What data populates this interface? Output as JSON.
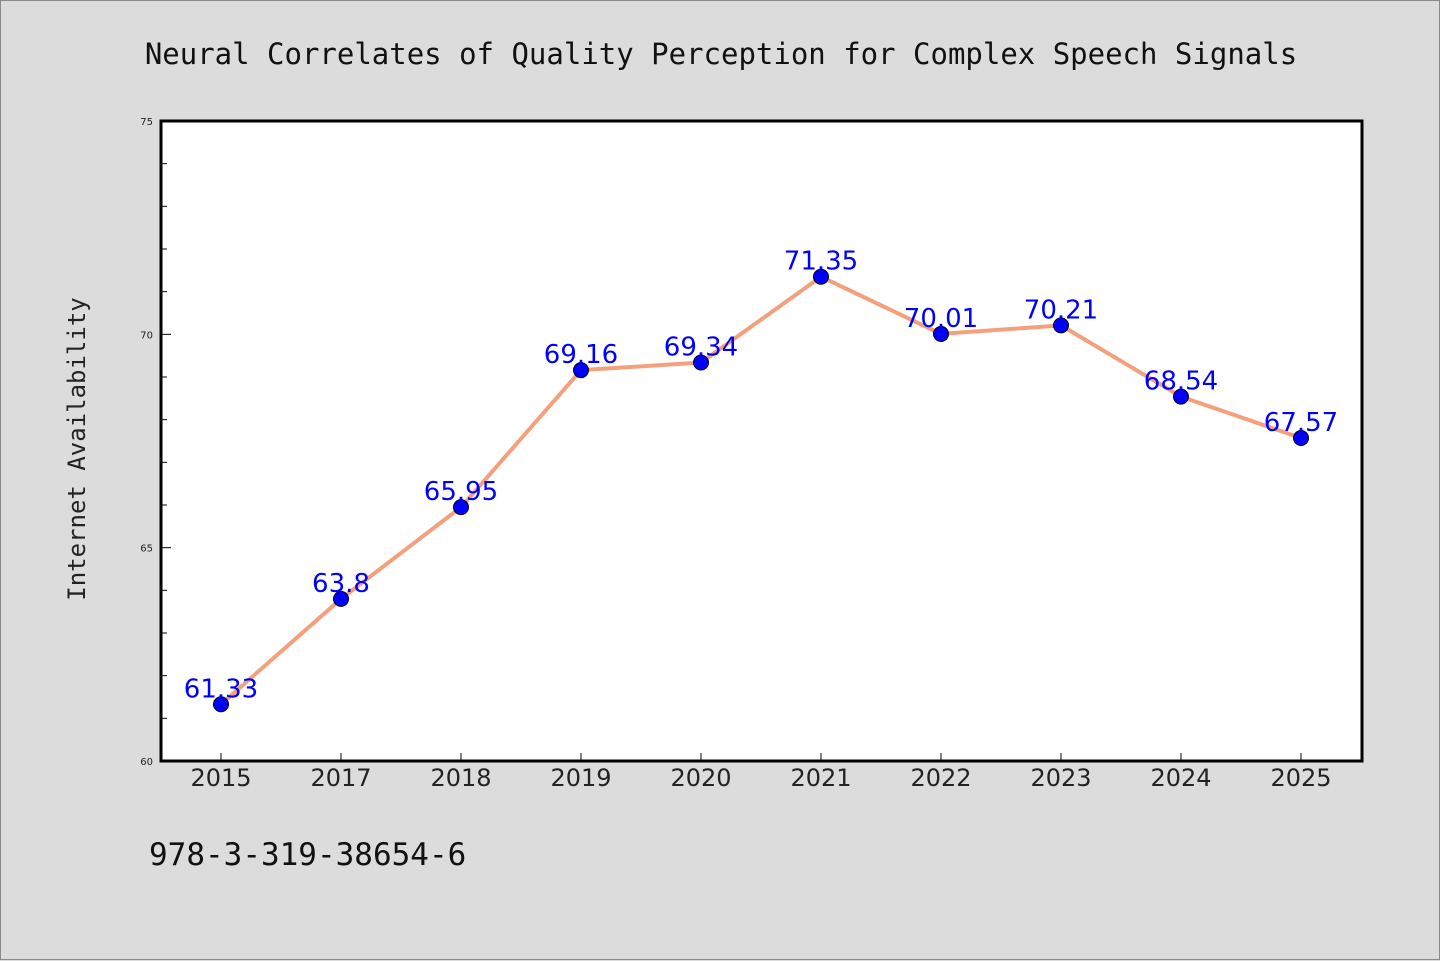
{
  "chart_data": {
    "type": "line",
    "title": "Neural Correlates of Quality Perception for Complex Speech Signals",
    "xlabel": "",
    "ylabel": "Internet Availability",
    "categories": [
      "2015",
      "2017",
      "2018",
      "2019",
      "2020",
      "2021",
      "2022",
      "2023",
      "2024",
      "2025"
    ],
    "series": [
      {
        "values": [
          61.33,
          63.8,
          65.95,
          69.16,
          69.34,
          71.35,
          70.01,
          70.21,
          68.54,
          67.57
        ]
      }
    ],
    "data_labels": [
      "61.33",
      "63.8",
      "65.95",
      "69.16",
      "69.34",
      "71.35",
      "70.01",
      "70.21",
      "68.54",
      "67.57"
    ],
    "ylim": [
      60,
      75
    ],
    "yticks": [
      60,
      65,
      70,
      75
    ],
    "ytick_labels": [
      "60",
      "65",
      "70",
      "75"
    ],
    "grid": false,
    "legend": "none",
    "colors": {
      "line": "#f4a07c",
      "marker": "#0000ff",
      "label": "#0000ff",
      "background": "#dcdcdc",
      "plot_area": "#ffffff"
    }
  },
  "footer_note": "978-3-319-38654-6"
}
